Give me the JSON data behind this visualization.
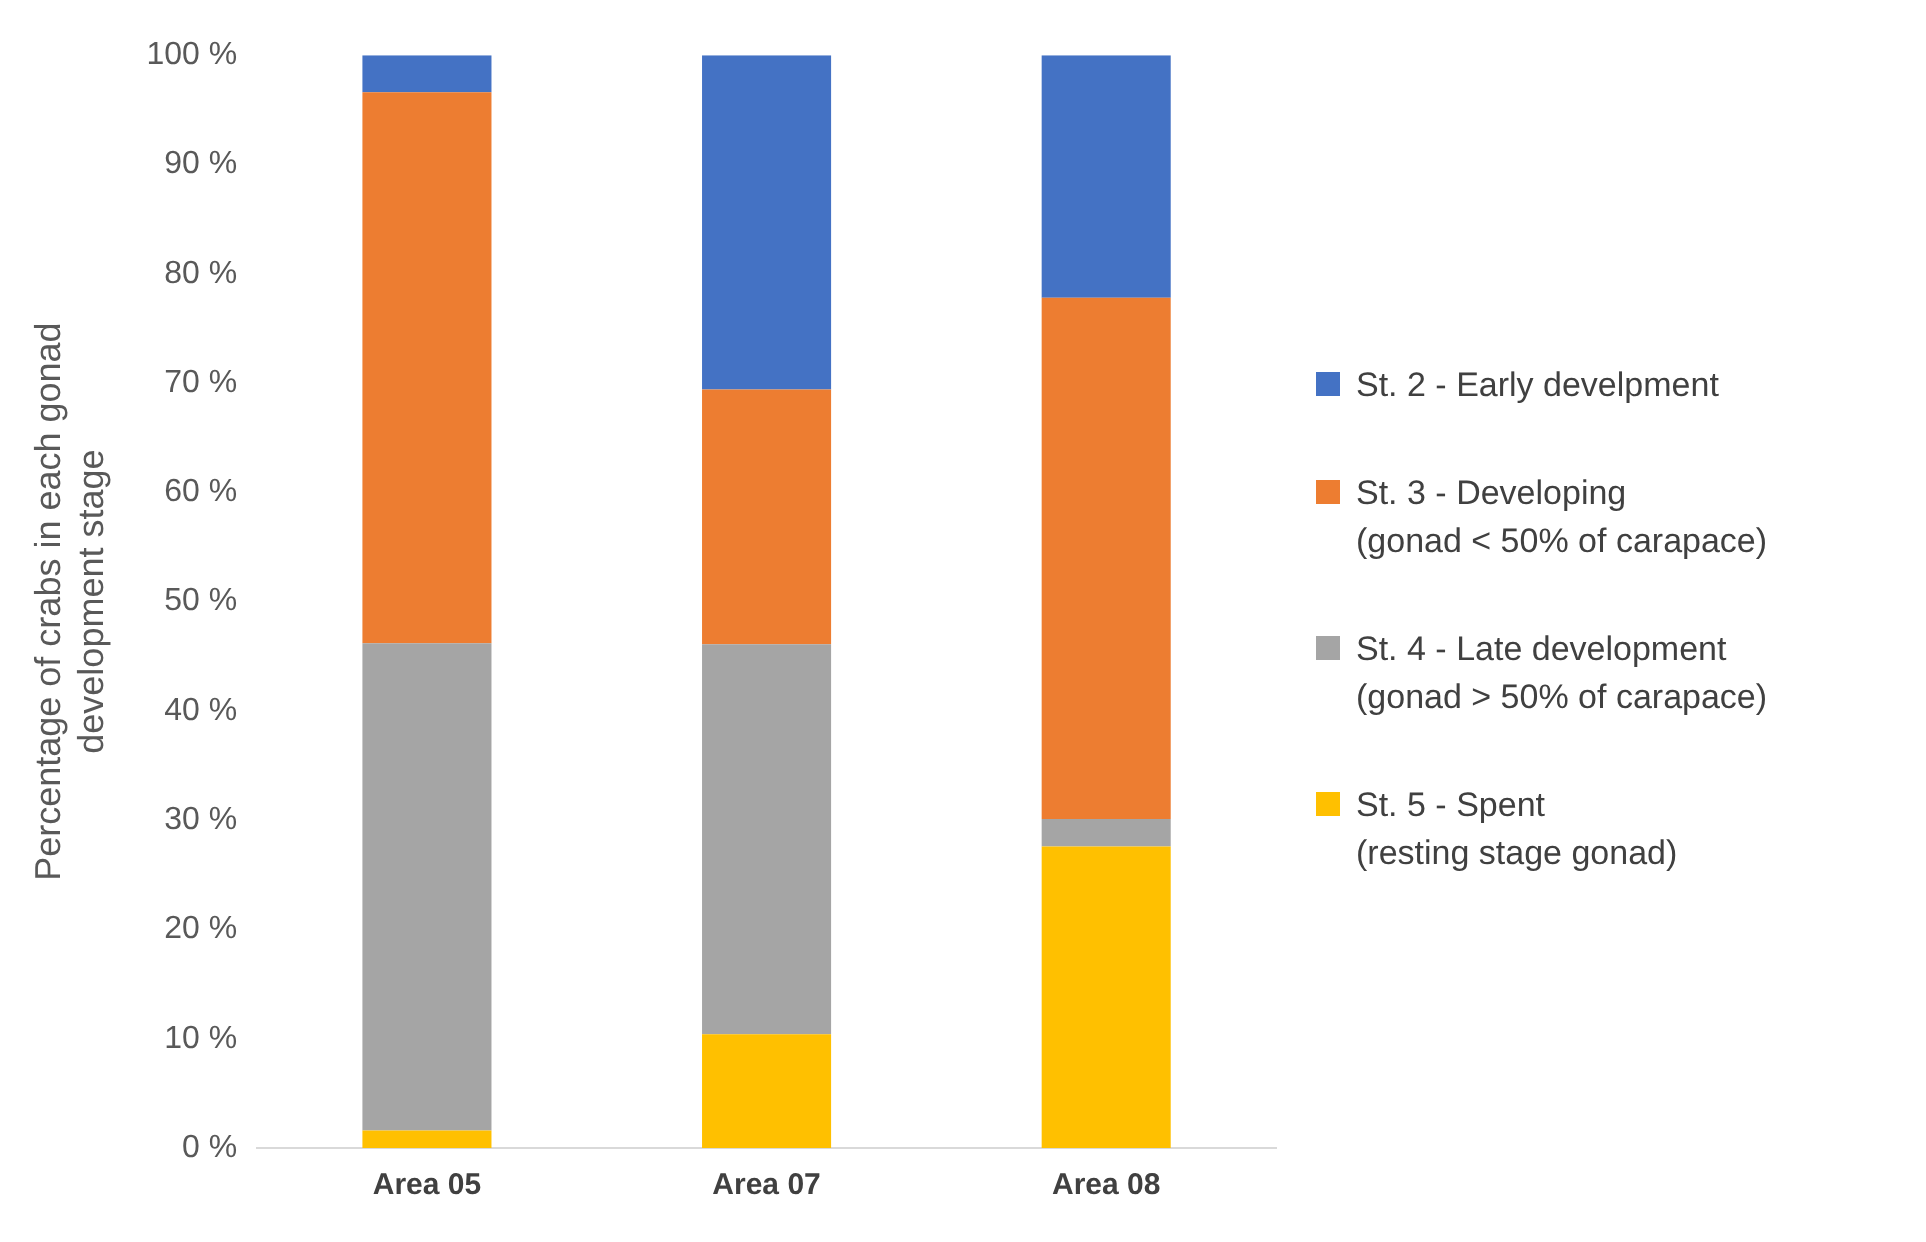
{
  "chart_data": {
    "type": "bar",
    "stacked": true,
    "ylabel": "Percentage of crabs in each gonad\ndevelopment stage",
    "categories": [
      "Area 05",
      "Area 07",
      "Area 08"
    ],
    "series": [
      {
        "name": "St. 5 - Spent\n(resting stage gonad)",
        "color": "#ffc000",
        "values": [
          1.6,
          10.4,
          27.6
        ]
      },
      {
        "name": "St. 4 - Late development\n(gonad > 50% of carapace)",
        "color": "#a5a5a5",
        "values": [
          44.6,
          35.7,
          2.5
        ]
      },
      {
        "name": "St. 3 - Developing\n(gonad < 50% of carapace)",
        "color": "#ed7d31",
        "values": [
          50.4,
          23.3,
          47.7
        ]
      },
      {
        "name": "St. 2 - Early develpment",
        "color": "#4472c4",
        "values": [
          3.4,
          30.6,
          22.2
        ]
      }
    ],
    "ylim": [
      0,
      100
    ],
    "yticks": [
      {
        "value": 0,
        "label": "0 %"
      },
      {
        "value": 10,
        "label": "10 %"
      },
      {
        "value": 20,
        "label": "20 %"
      },
      {
        "value": 30,
        "label": "30 %"
      },
      {
        "value": 40,
        "label": "40 %"
      },
      {
        "value": 50,
        "label": "50 %"
      },
      {
        "value": 60,
        "label": "60 %"
      },
      {
        "value": 70,
        "label": "70 %"
      },
      {
        "value": 80,
        "label": "80 %"
      },
      {
        "value": 90,
        "label": "90 %"
      },
      {
        "value": 100,
        "label": "100 %"
      }
    ],
    "grid": false,
    "legend": "right"
  }
}
